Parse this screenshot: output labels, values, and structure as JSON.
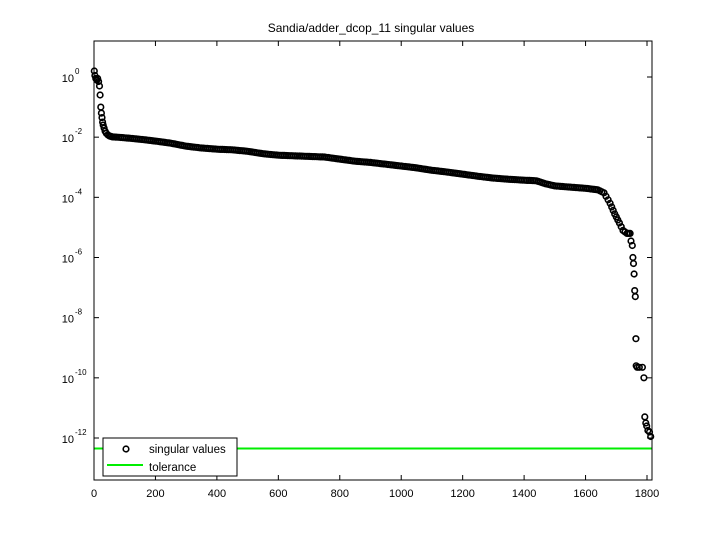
{
  "chart_data": {
    "type": "scatter",
    "title": "Sandia/adder_dcop_11 singular values",
    "xlabel": "",
    "ylabel": "",
    "yscale": "log",
    "xlim": [
      0,
      1813
    ],
    "ylim_log10": [
      -13.4,
      1.2
    ],
    "x_ticks": [
      0,
      200,
      400,
      600,
      800,
      1000,
      1200,
      1400,
      1600,
      1800
    ],
    "y_ticks_log10": [
      0,
      -2,
      -4,
      -6,
      -8,
      -10,
      -12
    ],
    "y_tick_labels": [
      "10^0",
      "10^-2",
      "10^-4",
      "10^-6",
      "10^-8",
      "10^-10",
      "10^-12"
    ],
    "grid": false,
    "legend_position": "lower left",
    "legend": [
      "singular values",
      "tolerance"
    ],
    "series": [
      {
        "name": "singular values",
        "marker": "o",
        "color": "#000000",
        "points_log10": [
          [
            1,
            0.2
          ],
          [
            3,
            0.05
          ],
          [
            6,
            -0.05
          ],
          [
            9,
            -0.1
          ],
          [
            12,
            -0.05
          ],
          [
            15,
            -0.15
          ],
          [
            18,
            -0.3
          ],
          [
            20,
            -0.6
          ],
          [
            22,
            -1.0
          ],
          [
            24,
            -1.2
          ],
          [
            26,
            -1.35
          ],
          [
            28,
            -1.5
          ],
          [
            30,
            -1.6
          ],
          [
            33,
            -1.7
          ],
          [
            36,
            -1.8
          ],
          [
            40,
            -1.87
          ],
          [
            45,
            -1.92
          ],
          [
            50,
            -1.96
          ],
          [
            60,
            -1.99
          ],
          [
            75,
            -2.0
          ],
          [
            100,
            -2.02
          ],
          [
            150,
            -2.07
          ],
          [
            200,
            -2.13
          ],
          [
            250,
            -2.2
          ],
          [
            300,
            -2.3
          ],
          [
            350,
            -2.36
          ],
          [
            400,
            -2.4
          ],
          [
            450,
            -2.42
          ],
          [
            500,
            -2.47
          ],
          [
            550,
            -2.55
          ],
          [
            600,
            -2.6
          ],
          [
            650,
            -2.62
          ],
          [
            700,
            -2.64
          ],
          [
            750,
            -2.66
          ],
          [
            800,
            -2.73
          ],
          [
            850,
            -2.8
          ],
          [
            900,
            -2.84
          ],
          [
            950,
            -2.9
          ],
          [
            1000,
            -2.96
          ],
          [
            1050,
            -3.02
          ],
          [
            1100,
            -3.1
          ],
          [
            1150,
            -3.16
          ],
          [
            1200,
            -3.23
          ],
          [
            1250,
            -3.3
          ],
          [
            1300,
            -3.36
          ],
          [
            1350,
            -3.4
          ],
          [
            1400,
            -3.43
          ],
          [
            1440,
            -3.45
          ],
          [
            1470,
            -3.55
          ],
          [
            1500,
            -3.62
          ],
          [
            1550,
            -3.66
          ],
          [
            1600,
            -3.7
          ],
          [
            1640,
            -3.75
          ],
          [
            1660,
            -3.85
          ],
          [
            1680,
            -4.2
          ],
          [
            1695,
            -4.55
          ],
          [
            1710,
            -4.85
          ],
          [
            1722,
            -5.1
          ],
          [
            1735,
            -5.2
          ],
          [
            1745,
            -5.2
          ],
          [
            1748,
            -5.45
          ],
          [
            1752,
            -5.6
          ],
          [
            1754,
            -6.0
          ],
          [
            1756,
            -6.2
          ],
          [
            1758,
            -6.55
          ],
          [
            1760,
            -7.1
          ],
          [
            1762,
            -7.3
          ],
          [
            1764,
            -8.7
          ],
          [
            1765,
            -9.6
          ],
          [
            1768,
            -9.65
          ],
          [
            1775,
            -9.65
          ],
          [
            1785,
            -9.65
          ],
          [
            1790,
            -10.0
          ],
          [
            1793,
            -11.3
          ],
          [
            1796,
            -11.5
          ],
          [
            1799,
            -11.6
          ],
          [
            1803,
            -11.75
          ],
          [
            1808,
            -11.8
          ],
          [
            1812,
            -11.95
          ]
        ]
      },
      {
        "name": "tolerance",
        "type": "line",
        "color": "#00ee00",
        "value_log10": -12.35
      }
    ]
  },
  "figure": {
    "title": "Sandia/adder_dcop_11 singular values",
    "legend": {
      "entries": [
        {
          "label": "singular values",
          "symbol": "circle-marker"
        },
        {
          "label": "tolerance",
          "symbol": "green-line"
        }
      ]
    }
  }
}
